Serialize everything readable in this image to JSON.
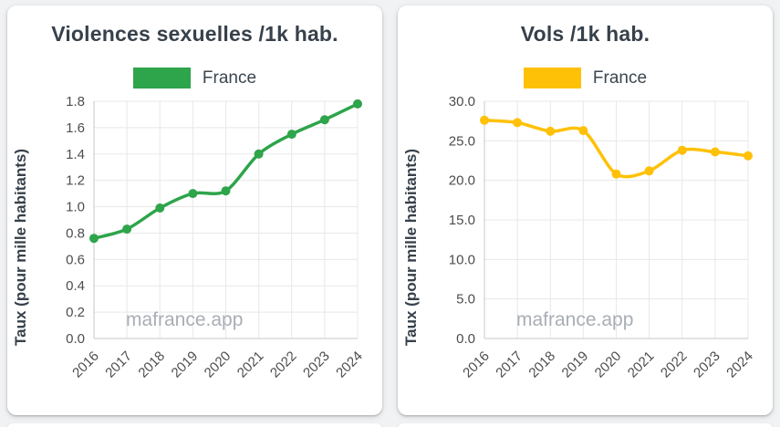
{
  "page": {
    "background": "#f1f2f3"
  },
  "watermark": "mafrance.app",
  "chart_data": [
    {
      "type": "line",
      "title": "Violences sexuelles /1k hab.",
      "categories": [
        "2016",
        "2017",
        "2018",
        "2019",
        "2020",
        "2021",
        "2022",
        "2023",
        "2024"
      ],
      "series": [
        {
          "name": "France",
          "color": "#2ea44b",
          "values": [
            0.76,
            0.83,
            0.99,
            1.1,
            1.12,
            1.4,
            1.55,
            1.66,
            1.78
          ]
        }
      ],
      "xlabel": "",
      "ylabel": "Taux (pour mille habitants)",
      "ylim": [
        0,
        1.8
      ],
      "yticks": [
        1.8,
        1.6,
        1.4,
        1.2,
        1.0,
        0.8,
        0.6,
        0.4,
        0.2,
        0.0
      ],
      "ytick_labels": [
        "1.8",
        "1.6",
        "1.4",
        "1.2",
        "1.0",
        "0.8",
        "0.6",
        "0.4",
        "0.2",
        "0.0"
      ],
      "grid": true,
      "legend_position": "top",
      "watermark": "mafrance.app"
    },
    {
      "type": "line",
      "title": "Vols /1k hab.",
      "categories": [
        "2016",
        "2017",
        "2018",
        "2019",
        "2020",
        "2021",
        "2022",
        "2023",
        "2024"
      ],
      "series": [
        {
          "name": "France",
          "color": "#ffc107",
          "values": [
            27.6,
            27.3,
            26.2,
            26.3,
            20.8,
            21.2,
            23.8,
            23.6,
            23.1
          ]
        }
      ],
      "xlabel": "",
      "ylabel": "Taux (pour mille habitants)",
      "ylim": [
        0,
        30
      ],
      "yticks": [
        30.0,
        25.0,
        20.0,
        15.0,
        10.0,
        5.0,
        0.0
      ],
      "ytick_labels": [
        "30.0",
        "25.0",
        "20.0",
        "15.0",
        "10.0",
        "5.0",
        "0.0"
      ],
      "grid": true,
      "legend_position": "top",
      "watermark": "mafrance.app"
    }
  ]
}
